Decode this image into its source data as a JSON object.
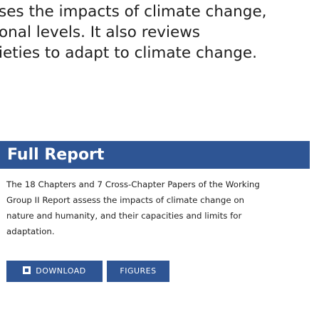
{
  "intro": {
    "lines": [
      "ses the impacts of climate change,",
      "onal levels. It also reviews",
      "ieties to adapt to climate change."
    ]
  },
  "report_card": {
    "title": "Full Report",
    "description_lines": [
      "The 18 Chapters and 7 Cross-Chapter Papers of the Working",
      "Group II Report assess the impacts of climate change on",
      "nature and humanity, and their capacities and limits for",
      "adaptation."
    ],
    "buttons": {
      "download_label": "DOWNLOAD",
      "download_icon": "book-icon",
      "figures_label": "FIGURES"
    }
  },
  "colors": {
    "accent": "#2e5594",
    "text": "#1f1f1f",
    "background": "#ffffff"
  }
}
